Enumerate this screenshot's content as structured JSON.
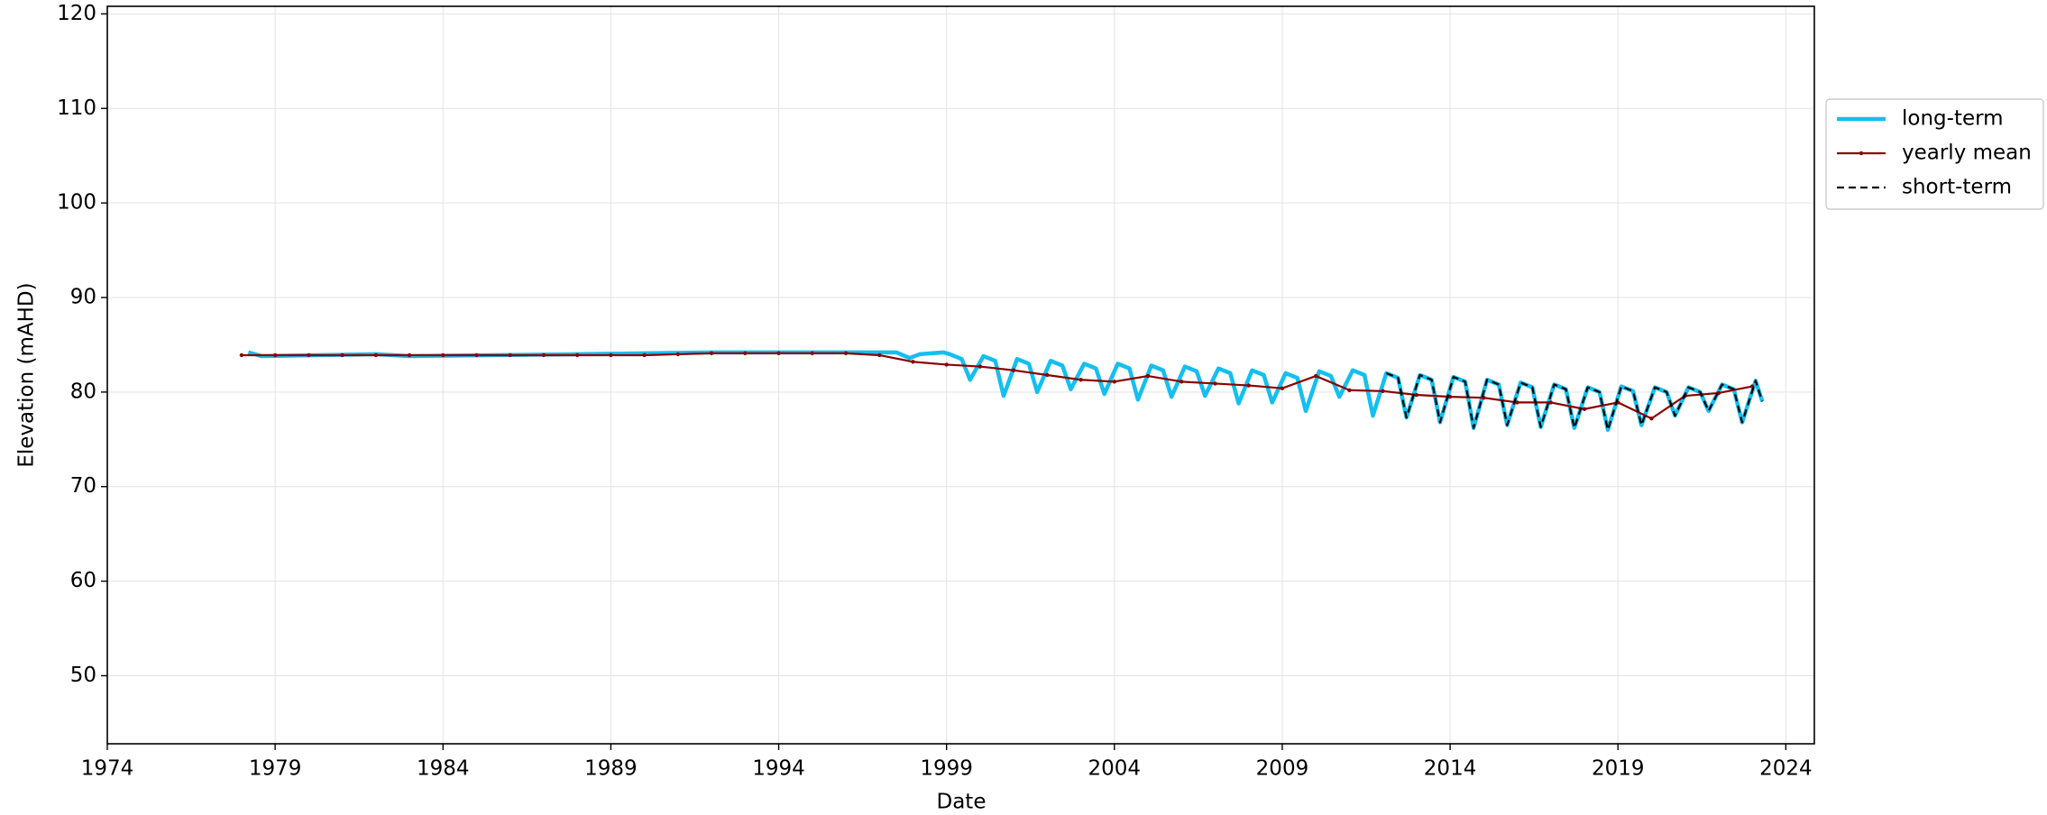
{
  "chart_data": {
    "type": "line",
    "xlabel": "Date",
    "ylabel": "Elevation (mAHD)",
    "xlim": [
      1974,
      2024.85
    ],
    "xticks": [
      1974,
      1979,
      1984,
      1989,
      1994,
      1999,
      2004,
      2009,
      2014,
      2019,
      2024
    ],
    "ylim": [
      42.8,
      120.8
    ],
    "yticks": [
      50,
      60,
      70,
      80,
      90,
      100,
      110,
      120
    ],
    "grid": true,
    "legend": "outside right",
    "series": [
      {
        "name": "long-term",
        "color": "#14bff0",
        "x": [
          1978.2,
          1978.6,
          1982,
          1983,
          1988,
          1992,
          1997.5,
          1997.9,
          1998.2,
          1998.9,
          1999.1,
          1999.45,
          1999.7,
          2000.1,
          2000.45,
          2000.7,
          2001.1,
          2001.45,
          2001.7,
          2002.1,
          2002.45,
          2002.7,
          2003.1,
          2003.45,
          2003.7,
          2004.1,
          2004.45,
          2004.7,
          2005.1,
          2005.45,
          2005.7,
          2006.1,
          2006.45,
          2006.7,
          2007.1,
          2007.45,
          2007.7,
          2008.1,
          2008.45,
          2008.7,
          2009.1,
          2009.45,
          2009.7,
          2010.1,
          2010.45,
          2010.7,
          2011.1,
          2011.45,
          2011.7,
          2012.1,
          2012.45,
          2012.7,
          2013.1,
          2013.45,
          2013.7,
          2014.1,
          2014.45,
          2014.7,
          2015.1,
          2015.45,
          2015.7,
          2016.1,
          2016.45,
          2016.7,
          2017.1,
          2017.45,
          2017.7,
          2018.1,
          2018.45,
          2018.7,
          2019.1,
          2019.45,
          2019.7,
          2020.1,
          2020.45,
          2020.7,
          2021.1,
          2021.45,
          2021.7,
          2022.1,
          2022.45,
          2022.7,
          2023.1,
          2023.3
        ],
        "values": [
          84.2,
          83.8,
          84.0,
          83.8,
          84.0,
          84.2,
          84.2,
          83.6,
          84.0,
          84.2,
          84.0,
          83.5,
          81.3,
          83.8,
          83.3,
          79.6,
          83.5,
          83.0,
          80.0,
          83.3,
          82.8,
          80.3,
          83.0,
          82.5,
          79.8,
          83.0,
          82.5,
          79.2,
          82.8,
          82.3,
          79.5,
          82.7,
          82.2,
          79.6,
          82.5,
          82.0,
          78.8,
          82.3,
          81.8,
          78.9,
          82.0,
          81.5,
          78.0,
          82.2,
          81.7,
          79.5,
          82.3,
          81.8,
          77.5,
          82.0,
          81.5,
          77.3,
          81.8,
          81.3,
          76.8,
          81.6,
          81.1,
          76.2,
          81.3,
          80.8,
          76.5,
          81.0,
          80.5,
          76.3,
          80.8,
          80.3,
          76.2,
          80.5,
          80.0,
          76.0,
          80.6,
          80.1,
          76.5,
          80.5,
          80.0,
          77.5,
          80.5,
          80.0,
          78.0,
          80.8,
          80.3,
          76.8,
          81.2,
          79.0
        ]
      },
      {
        "name": "yearly mean",
        "color": "#8b0000",
        "markers": true,
        "x": [
          1978,
          1979,
          1980,
          1981,
          1982,
          1983,
          1984,
          1985,
          1986,
          1987,
          1988,
          1989,
          1990,
          1991,
          1992,
          1993,
          1994,
          1995,
          1996,
          1997,
          1998,
          1999,
          2000,
          2001,
          2002,
          2003,
          2004,
          2005,
          2006,
          2007,
          2008,
          2009,
          2010,
          2011,
          2012,
          2013,
          2014,
          2015,
          2016,
          2017,
          2018,
          2019,
          2020,
          2021,
          2022,
          2023
        ],
        "values": [
          83.9,
          83.9,
          83.9,
          83.9,
          83.9,
          83.9,
          83.9,
          83.9,
          83.9,
          83.9,
          83.9,
          83.9,
          83.9,
          84.0,
          84.1,
          84.1,
          84.1,
          84.1,
          84.1,
          83.9,
          83.2,
          82.9,
          82.7,
          82.3,
          81.8,
          81.3,
          81.1,
          81.7,
          81.1,
          80.9,
          80.7,
          80.4,
          81.7,
          80.2,
          80.1,
          79.7,
          79.5,
          79.4,
          78.9,
          78.9,
          78.2,
          78.9,
          77.2,
          79.6,
          79.9,
          80.6
        ]
      },
      {
        "name": "short-term",
        "color": "#000000",
        "dashed": true,
        "x": [
          2012.1,
          2012.45,
          2012.7,
          2013.1,
          2013.45,
          2013.7,
          2014.1,
          2014.45,
          2014.7,
          2015.1,
          2015.45,
          2015.7,
          2016.1,
          2016.45,
          2016.7,
          2017.1,
          2017.45,
          2017.7,
          2018.1,
          2018.45,
          2018.7,
          2019.1,
          2019.45,
          2019.7,
          2020.1,
          2020.45,
          2020.7,
          2021.1,
          2021.45,
          2021.7,
          2022.1,
          2022.45,
          2022.7,
          2023.1,
          2023.3
        ],
        "values": [
          82.0,
          81.5,
          77.3,
          81.8,
          81.3,
          76.8,
          81.6,
          81.1,
          76.2,
          81.3,
          80.8,
          76.5,
          81.0,
          80.5,
          76.3,
          80.8,
          80.3,
          76.2,
          80.5,
          80.0,
          76.0,
          80.6,
          80.1,
          76.5,
          80.5,
          80.0,
          77.5,
          80.5,
          80.0,
          78.0,
          80.8,
          80.3,
          76.8,
          81.2,
          79.0
        ]
      }
    ]
  }
}
